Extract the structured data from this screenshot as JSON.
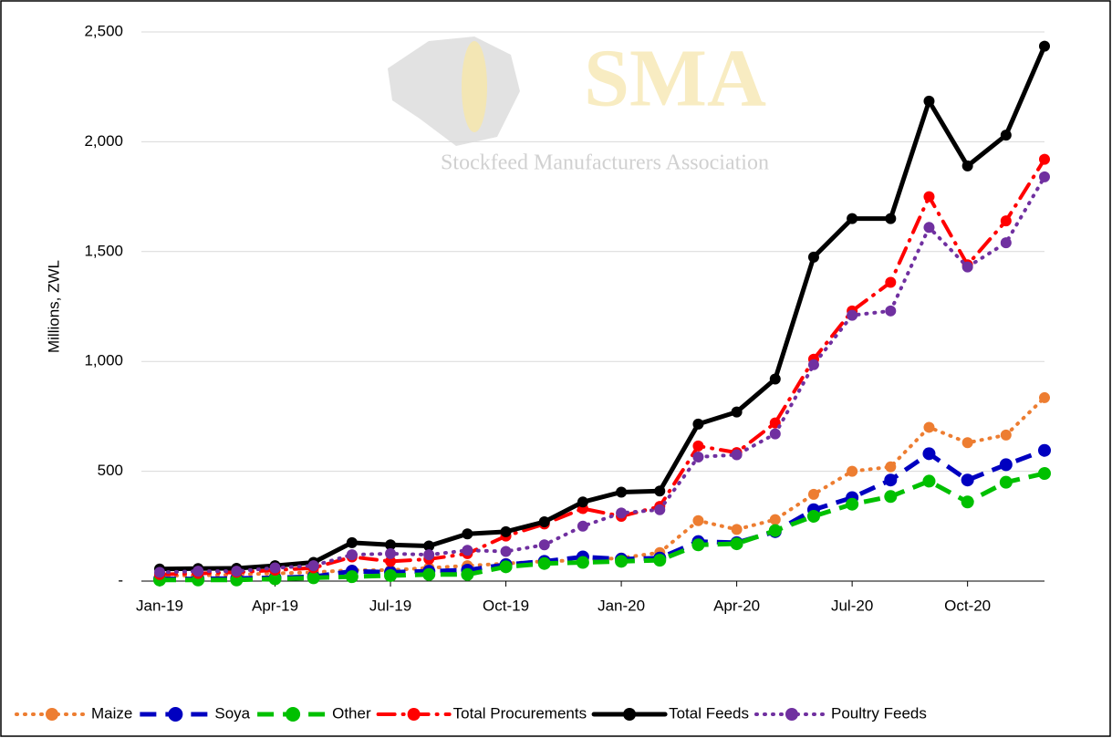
{
  "chart_data": {
    "type": "line",
    "watermark": {
      "title": "SMA",
      "subtitle": "Stockfeed Manufacturers Association"
    },
    "y_label": "Millions, ZWL",
    "categories": [
      "Jan-19",
      null,
      null,
      "Apr-19",
      null,
      null,
      "Jul-19",
      null,
      null,
      "Oct-19",
      null,
      null,
      "Jan-20",
      null,
      null,
      "Apr-20",
      null,
      null,
      "Jul-20",
      null,
      null,
      "Oct-20",
      null,
      null
    ],
    "series": [
      {
        "name": "Maize",
        "color": "#ed7d31",
        "style": "dotted",
        "values": [
          25,
          25,
          30,
          35,
          40,
          50,
          50,
          60,
          70,
          80,
          90,
          95,
          105,
          130,
          275,
          235,
          280,
          395,
          500,
          520,
          700,
          630,
          665,
          835
        ]
      },
      {
        "name": "Soya",
        "color": "#0000c0",
        "style": "dashed",
        "values": [
          10,
          10,
          12,
          15,
          20,
          45,
          40,
          45,
          50,
          75,
          90,
          110,
          100,
          105,
          180,
          175,
          225,
          325,
          380,
          460,
          580,
          460,
          530,
          595
        ]
      },
      {
        "name": "Other",
        "color": "#00c000",
        "style": "dashed",
        "values": [
          5,
          5,
          5,
          10,
          15,
          20,
          25,
          30,
          30,
          65,
          80,
          85,
          90,
          95,
          165,
          170,
          230,
          295,
          350,
          385,
          455,
          360,
          450,
          490
        ]
      },
      {
        "name": "Total Procurements",
        "color": "#ff0000",
        "style": "dashdot",
        "values": [
          30,
          35,
          40,
          50,
          60,
          110,
          90,
          100,
          125,
          205,
          260,
          330,
          295,
          340,
          615,
          585,
          720,
          1010,
          1230,
          1360,
          1750,
          1440,
          1640,
          1920
        ]
      },
      {
        "name": "Total Feeds",
        "color": "#000000",
        "style": "solid",
        "values": [
          55,
          57,
          58,
          70,
          85,
          175,
          165,
          160,
          215,
          225,
          270,
          360,
          405,
          410,
          715,
          770,
          920,
          1475,
          1650,
          1650,
          2185,
          1890,
          2030,
          2435
        ]
      },
      {
        "name": "Poultry Feeds",
        "color": "#7030a0",
        "style": "dotted",
        "values": [
          40,
          45,
          45,
          60,
          70,
          120,
          125,
          120,
          140,
          135,
          165,
          250,
          310,
          325,
          565,
          575,
          670,
          985,
          1210,
          1230,
          1610,
          1430,
          1540,
          1840
        ]
      }
    ],
    "ylim": [
      0,
      2500
    ],
    "yticks": [
      {
        "value": 0,
        "label": "-"
      },
      500,
      {
        "value": 1000,
        "label": "1,000"
      },
      {
        "value": 1500,
        "label": "1,500"
      },
      {
        "value": 2000,
        "label": "2,000"
      },
      {
        "value": 2500,
        "label": "2,500"
      }
    ],
    "grid": true,
    "legend": "bottom"
  }
}
